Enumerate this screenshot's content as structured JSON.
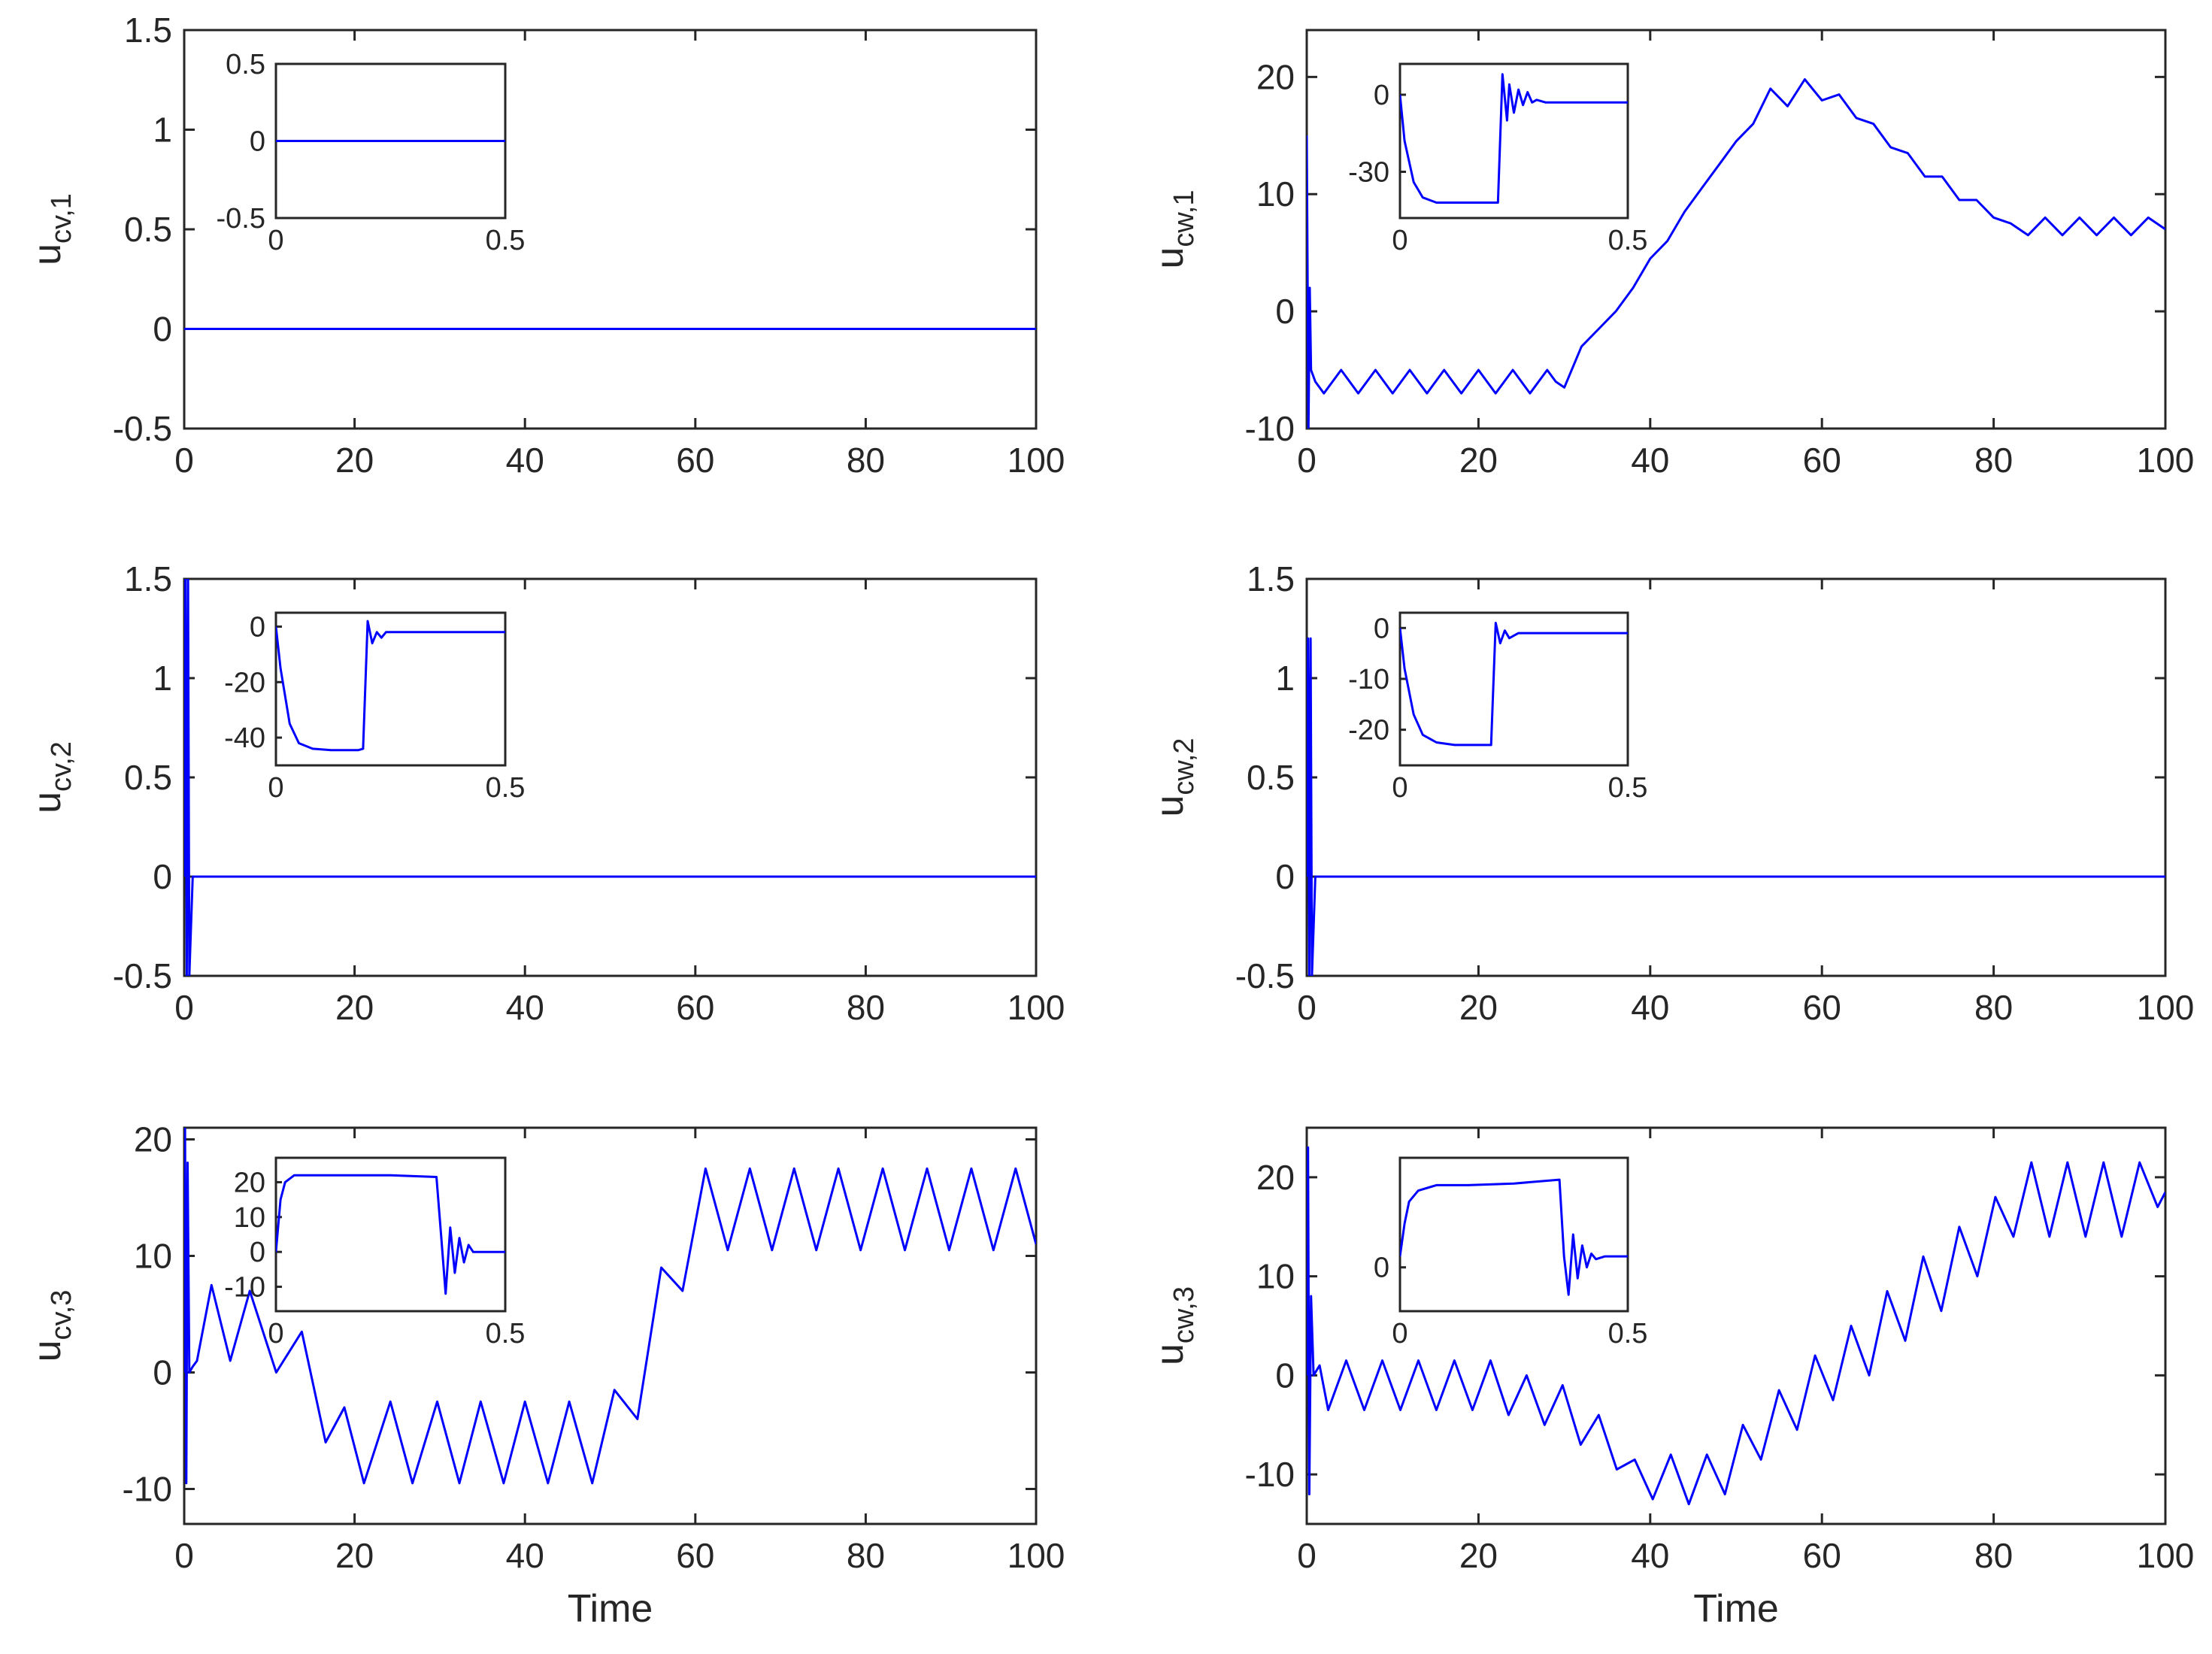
{
  "figure": {
    "line_color": "#0000ff",
    "axis_color": "#262626",
    "background": "#ffffff"
  },
  "chart_data": [
    {
      "type": "line",
      "ylabel_main": "u",
      "ylabel_sub": "cv,1",
      "xlabel": "",
      "xlim": [
        0,
        100
      ],
      "ylim": [
        -0.5,
        1.5
      ],
      "xticks": [
        0,
        20,
        40,
        60,
        80,
        100
      ],
      "xtick_labels": [
        "0",
        "20",
        "40",
        "60",
        "80",
        "100"
      ],
      "yticks": [
        -0.5,
        0,
        0.5,
        1,
        1.5
      ],
      "ytick_labels": [
        "-0.5",
        "0",
        "0.5",
        "1",
        "1.5"
      ],
      "series": [
        {
          "x": [
            0,
            100
          ],
          "y": [
            0,
            0
          ]
        }
      ],
      "inset": {
        "xlim": [
          0,
          0.5
        ],
        "ylim": [
          -0.5,
          0.5
        ],
        "xticks": [
          0,
          0.5
        ],
        "xtick_labels": [
          "0",
          "0.5"
        ],
        "yticks": [
          -0.5,
          0,
          0.5
        ],
        "ytick_labels": [
          "-0.5",
          "0",
          "0.5"
        ],
        "series": [
          {
            "x": [
              0,
              0.5
            ],
            "y": [
              0,
              0
            ]
          }
        ]
      }
    },
    {
      "type": "line",
      "ylabel_main": "u",
      "ylabel_sub": "cw,1",
      "xlabel": "",
      "xlim": [
        0,
        100
      ],
      "ylim": [
        -10,
        24
      ],
      "xticks": [
        0,
        20,
        40,
        60,
        80,
        100
      ],
      "xtick_labels": [
        "0",
        "20",
        "40",
        "60",
        "80",
        "100"
      ],
      "yticks": [
        -10,
        0,
        10,
        20
      ],
      "ytick_labels": [
        "-10",
        "0",
        "10",
        "20"
      ],
      "series": [
        {
          "x": [
            0,
            0.2,
            0.35,
            0.5,
            1,
            2,
            4,
            6,
            8,
            10,
            12,
            14,
            16,
            18,
            20,
            22,
            24,
            26,
            28,
            29,
            30,
            32,
            34,
            36,
            38,
            40,
            42,
            44,
            46,
            48,
            50,
            52,
            54,
            56,
            58,
            60,
            62,
            64,
            66,
            68,
            70,
            72,
            74,
            76,
            78,
            80,
            82,
            84,
            86,
            88,
            90,
            92,
            94,
            96,
            98,
            100
          ],
          "y": [
            15,
            -10,
            2,
            -5,
            -6,
            -7,
            -5,
            -7,
            -5,
            -7,
            -5,
            -7,
            -5,
            -7,
            -5,
            -7,
            -5,
            -7,
            -5,
            -6,
            -6.5,
            -3,
            -1.5,
            0,
            2,
            4.5,
            6,
            8.5,
            10.5,
            12.5,
            14.5,
            16,
            19,
            17.5,
            19.8,
            18,
            18.5,
            16.5,
            16,
            14,
            13.5,
            11.5,
            11.5,
            9.5,
            9.5,
            8,
            7.5,
            6.5,
            8,
            6.5,
            8,
            6.5,
            8,
            6.5,
            8,
            7
          ]
        }
      ],
      "inset": {
        "xlim": [
          0,
          0.5
        ],
        "ylim": [
          -48,
          12
        ],
        "xticks": [
          0,
          0.5
        ],
        "xtick_labels": [
          "0",
          "0.5"
        ],
        "yticks": [
          -30,
          0
        ],
        "ytick_labels": [
          "-30",
          "0"
        ],
        "series": [
          {
            "x": [
              0,
              0.01,
              0.03,
              0.05,
              0.08,
              0.12,
              0.2,
              0.215,
              0.225,
              0.235,
              0.24,
              0.25,
              0.26,
              0.27,
              0.28,
              0.29,
              0.3,
              0.32,
              0.35,
              0.5
            ],
            "y": [
              0,
              -18,
              -34,
              -40,
              -42,
              -42,
              -42,
              -42,
              8,
              -10,
              4,
              -7,
              2,
              -4,
              1,
              -3,
              -2,
              -3,
              -3,
              -3
            ]
          }
        ]
      }
    },
    {
      "type": "line",
      "ylabel_main": "u",
      "ylabel_sub": "cv,2",
      "xlabel": "",
      "xlim": [
        0,
        100
      ],
      "ylim": [
        -0.5,
        1.5
      ],
      "xticks": [
        0,
        20,
        40,
        60,
        80,
        100
      ],
      "xtick_labels": [
        "0",
        "20",
        "40",
        "60",
        "80",
        "100"
      ],
      "yticks": [
        -0.5,
        0,
        0.5,
        1,
        1.5
      ],
      "ytick_labels": [
        "-0.5",
        "0",
        "0.5",
        "1",
        "1.5"
      ],
      "series": [
        {
          "x": [
            0,
            0.15,
            0.3,
            0.45,
            0.6,
            1,
            100
          ],
          "y": [
            0,
            1.5,
            -0.5,
            1.5,
            -0.5,
            0,
            0
          ]
        }
      ],
      "inset": {
        "xlim": [
          0,
          0.5
        ],
        "ylim": [
          -50,
          5
        ],
        "xticks": [
          0,
          0.5
        ],
        "xtick_labels": [
          "0",
          "0.5"
        ],
        "yticks": [
          -40,
          -20,
          0
        ],
        "ytick_labels": [
          "-40",
          "-20",
          "0"
        ],
        "series": [
          {
            "x": [
              0,
              0.01,
              0.03,
              0.05,
              0.08,
              0.12,
              0.18,
              0.19,
              0.2,
              0.21,
              0.22,
              0.23,
              0.24,
              0.26,
              0.3,
              0.5
            ],
            "y": [
              0,
              -15,
              -35,
              -42,
              -44,
              -44.5,
              -44.5,
              -44,
              2,
              -6,
              -2,
              -4,
              -2,
              -2,
              -2,
              -2
            ]
          }
        ]
      }
    },
    {
      "type": "line",
      "ylabel_main": "u",
      "ylabel_sub": "cw,2",
      "xlabel": "",
      "xlim": [
        0,
        100
      ],
      "ylim": [
        -0.5,
        1.5
      ],
      "xticks": [
        0,
        20,
        40,
        60,
        80,
        100
      ],
      "xtick_labels": [
        "0",
        "20",
        "40",
        "60",
        "80",
        "100"
      ],
      "yticks": [
        -0.5,
        0,
        0.5,
        1,
        1.5
      ],
      "ytick_labels": [
        "-0.5",
        "0",
        "0.5",
        "1",
        "1.5"
      ],
      "series": [
        {
          "x": [
            0,
            0.15,
            0.3,
            0.45,
            0.6,
            1,
            100
          ],
          "y": [
            0,
            1.2,
            -0.5,
            1.2,
            -0.5,
            0,
            0
          ]
        }
      ],
      "inset": {
        "xlim": [
          0,
          0.5
        ],
        "ylim": [
          -27,
          3
        ],
        "xticks": [
          0,
          0.5
        ],
        "xtick_labels": [
          "0",
          "0.5"
        ],
        "yticks": [
          -20,
          -10,
          0
        ],
        "ytick_labels": [
          "-20",
          "-10",
          "0"
        ],
        "series": [
          {
            "x": [
              0,
              0.01,
              0.03,
              0.05,
              0.08,
              0.12,
              0.19,
              0.2,
              0.21,
              0.22,
              0.23,
              0.24,
              0.26,
              0.3,
              0.5
            ],
            "y": [
              0,
              -8,
              -17,
              -21,
              -22.5,
              -23,
              -23,
              -23,
              1,
              -3,
              -0.5,
              -2,
              -1,
              -1,
              -1
            ]
          }
        ]
      }
    },
    {
      "type": "line",
      "ylabel_main": "u",
      "ylabel_sub": "cv,3",
      "xlabel": "Time",
      "xlim": [
        0,
        100
      ],
      "ylim": [
        -13,
        21
      ],
      "xticks": [
        0,
        20,
        40,
        60,
        80,
        100
      ],
      "xtick_labels": [
        "0",
        "20",
        "40",
        "60",
        "80",
        "100"
      ],
      "yticks": [
        -10,
        0,
        10,
        20
      ],
      "ytick_labels": [
        "-10",
        "0",
        "10",
        "20"
      ],
      "series": [
        {
          "x": [
            0,
            0.1,
            0.25,
            0.4,
            0.6,
            1,
            1.5,
            3.2,
            5.4,
            7.7,
            10.8,
            13.8,
            16.6,
            18.8,
            21.1,
            24.2,
            26.8,
            29.7,
            32.3,
            34.8,
            37.5,
            40,
            42.7,
            45.2,
            47.9,
            50.5,
            53.2,
            56,
            58.5,
            61.2,
            63.8,
            66.4,
            69,
            71.6,
            74.2,
            76.8,
            79.4,
            82,
            84.6,
            87.2,
            89.8,
            92.4,
            95,
            97.6,
            100
          ],
          "y": [
            0,
            21,
            -9.5,
            18,
            0,
            0.5,
            1,
            7.5,
            1,
            7,
            0,
            3.5,
            -6,
            -3,
            -9.5,
            -2.5,
            -9.5,
            -2.5,
            -9.5,
            -2.5,
            -9.5,
            -2.5,
            -9.5,
            -2.5,
            -9.5,
            -1.5,
            -4,
            9,
            7,
            17.5,
            10.5,
            17.5,
            10.5,
            17.5,
            10.5,
            17.5,
            10.5,
            17.5,
            10.5,
            17.5,
            10.5,
            17.5,
            10.5,
            17.5,
            11
          ]
        }
      ],
      "inset": {
        "xlim": [
          0,
          0.5
        ],
        "ylim": [
          -17,
          27
        ],
        "xticks": [
          0,
          0.5
        ],
        "xtick_labels": [
          "0",
          "0.5"
        ],
        "yticks": [
          -10,
          0,
          10,
          20
        ],
        "ytick_labels": [
          "-10",
          "0",
          "10",
          "20"
        ],
        "series": [
          {
            "x": [
              0,
              0.01,
              0.02,
              0.04,
              0.08,
              0.15,
              0.25,
              0.35,
              0.36,
              0.37,
              0.38,
              0.39,
              0.4,
              0.41,
              0.42,
              0.43,
              0.45,
              0.5
            ],
            "y": [
              0,
              15,
              20,
              22,
              22,
              22,
              22,
              21.5,
              5,
              -12,
              7,
              -6,
              4,
              -3,
              2,
              0,
              0,
              0
            ]
          }
        ]
      }
    },
    {
      "type": "line",
      "ylabel_main": "u",
      "ylabel_sub": "cw,3",
      "xlabel": "Time",
      "xlim": [
        0,
        100
      ],
      "ylim": [
        -15,
        25
      ],
      "xticks": [
        0,
        20,
        40,
        60,
        80,
        100
      ],
      "xtick_labels": [
        "0",
        "20",
        "40",
        "60",
        "80",
        "100"
      ],
      "yticks": [
        -10,
        0,
        10,
        20
      ],
      "ytick_labels": [
        "-10",
        "0",
        "10",
        "20"
      ],
      "series": [
        {
          "x": [
            0,
            0.15,
            0.3,
            0.5,
            0.8,
            1.5,
            2.5,
            4.6,
            6.7,
            8.8,
            10.9,
            13,
            15.1,
            17.2,
            19.3,
            21.4,
            23.5,
            25.6,
            27.7,
            29.8,
            31.9,
            34,
            36.1,
            38.2,
            40.3,
            42.4,
            44.5,
            46.6,
            48.7,
            50.8,
            52.9,
            55,
            57.1,
            59.2,
            61.3,
            63.4,
            65.5,
            67.6,
            69.7,
            71.8,
            73.9,
            76,
            78.1,
            80.2,
            82.3,
            84.4,
            86.5,
            88.6,
            90.7,
            92.8,
            94.9,
            97,
            99.1,
            100
          ],
          "y": [
            0,
            23,
            -12,
            8,
            0,
            1,
            -3.5,
            1.5,
            -3.5,
            1.5,
            -3.5,
            1.5,
            -3.5,
            1.5,
            -3.5,
            1.5,
            -4,
            0,
            -5,
            -1,
            -7,
            -4,
            -9.5,
            -8.5,
            -12.5,
            -8,
            -13,
            -8,
            -12,
            -5,
            -8.5,
            -1.5,
            -5.5,
            2,
            -2.5,
            5,
            0,
            8.5,
            3.5,
            12,
            6.5,
            15,
            10,
            18,
            14,
            21.5,
            14,
            21.5,
            14,
            21.5,
            14,
            21.5,
            17,
            18.5
          ]
        }
      ],
      "inset": {
        "xlim": [
          0,
          0.5
        ],
        "ylim": [
          -8,
          20
        ],
        "xticks": [
          0,
          0.5
        ],
        "xtick_labels": [
          "0",
          "0.5"
        ],
        "yticks": [
          0
        ],
        "ytick_labels": [
          "0"
        ],
        "series": [
          {
            "x": [
              0,
              0.01,
              0.02,
              0.04,
              0.08,
              0.15,
              0.25,
              0.35,
              0.36,
              0.37,
              0.38,
              0.39,
              0.4,
              0.41,
              0.42,
              0.43,
              0.45,
              0.5
            ],
            "y": [
              2,
              8,
              12,
              14,
              15,
              15,
              15.3,
              16,
              2,
              -5,
              6,
              -2,
              4,
              0,
              2.5,
              1.5,
              2,
              2
            ]
          }
        ]
      }
    }
  ]
}
